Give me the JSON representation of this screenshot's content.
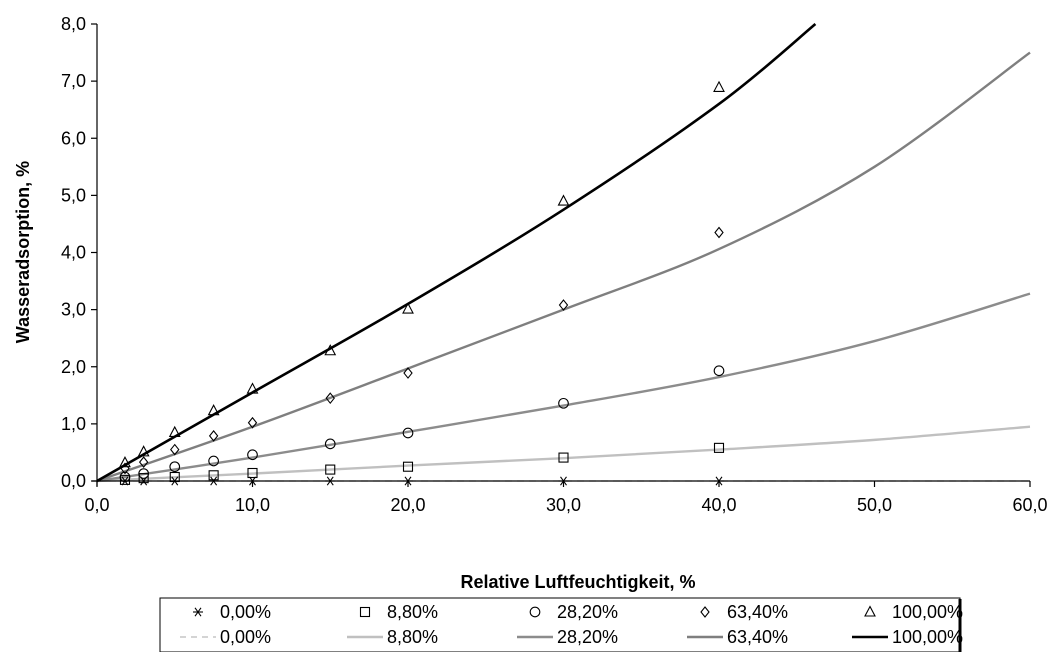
{
  "chart_data": {
    "type": "scatter",
    "title": "",
    "xlabel": "Relative Luftfeuchtigkeit, %",
    "ylabel": "Wasseradsorption, %",
    "xlim": [
      0,
      60
    ],
    "ylim": [
      0,
      8
    ],
    "x_ticks": [
      "0,0",
      "10,0",
      "20,0",
      "30,0",
      "40,0",
      "50,0",
      "60,0"
    ],
    "y_ticks": [
      "0,0",
      "1,0",
      "2,0",
      "3,0",
      "4,0",
      "5,0",
      "6,0",
      "7,0",
      "8,0"
    ],
    "grid": false,
    "legend_position": "bottom",
    "measured_series": [
      {
        "name": "0,00%",
        "marker": "asterisk",
        "x": [
          1.8,
          3,
          5,
          7.5,
          10,
          15,
          20,
          30,
          40
        ],
        "y": [
          0,
          0,
          0,
          0,
          0,
          0,
          0,
          0,
          0
        ]
      },
      {
        "name": "8,80%",
        "marker": "square",
        "x": [
          1.8,
          3,
          5,
          7.5,
          10,
          15,
          20,
          30,
          40
        ],
        "y": [
          0.02,
          0.05,
          0.07,
          0.1,
          0.14,
          0.2,
          0.25,
          0.41,
          0.58
        ]
      },
      {
        "name": "28,20%",
        "marker": "circle",
        "x": [
          1.8,
          3,
          5,
          7.5,
          10,
          15,
          20,
          30,
          40
        ],
        "y": [
          0.07,
          0.13,
          0.25,
          0.35,
          0.46,
          0.65,
          0.84,
          1.36,
          1.93
        ]
      },
      {
        "name": "63,40%",
        "marker": "diamond",
        "x": [
          1.8,
          3,
          5,
          7.5,
          10,
          15,
          20,
          30,
          40
        ],
        "y": [
          0.22,
          0.33,
          0.55,
          0.79,
          1.02,
          1.45,
          1.89,
          3.08,
          4.35
        ]
      },
      {
        "name": "100,00%",
        "marker": "triangle",
        "x": [
          1.8,
          3,
          5,
          7.5,
          10,
          15,
          20,
          30,
          40
        ],
        "y": [
          0.32,
          0.51,
          0.85,
          1.23,
          1.61,
          2.28,
          3.01,
          4.9,
          6.89
        ]
      }
    ],
    "fit_series": [
      {
        "name": "0,00%",
        "color": "#bbbbbb",
        "dashed": true,
        "x": [
          0,
          10,
          20,
          30,
          40,
          50,
          60
        ],
        "y": [
          0,
          0,
          0,
          0,
          0,
          0,
          0
        ]
      },
      {
        "name": "8,80%",
        "color": "#c0c0c0",
        "dashed": false,
        "x": [
          0,
          10,
          20,
          30,
          40,
          50,
          60
        ],
        "y": [
          0,
          0.13,
          0.27,
          0.4,
          0.55,
          0.72,
          0.95
        ]
      },
      {
        "name": "28,20%",
        "color": "#8c8c8c",
        "dashed": false,
        "x": [
          0,
          10,
          20,
          30,
          40,
          50,
          60
        ],
        "y": [
          0,
          0.41,
          0.86,
          1.32,
          1.82,
          2.45,
          3.28
        ]
      },
      {
        "name": "63,40%",
        "color": "#7f7f7f",
        "dashed": false,
        "x": [
          0,
          10,
          20,
          30,
          40,
          50,
          60
        ],
        "y": [
          0,
          0.95,
          1.97,
          3.0,
          4.06,
          5.5,
          7.5
        ]
      },
      {
        "name": "100,00%",
        "color": "#000000",
        "dashed": false,
        "x": [
          0,
          10,
          20,
          30,
          40,
          46.2
        ],
        "y": [
          0,
          1.55,
          3.1,
          4.75,
          6.6,
          8.0
        ]
      }
    ]
  }
}
